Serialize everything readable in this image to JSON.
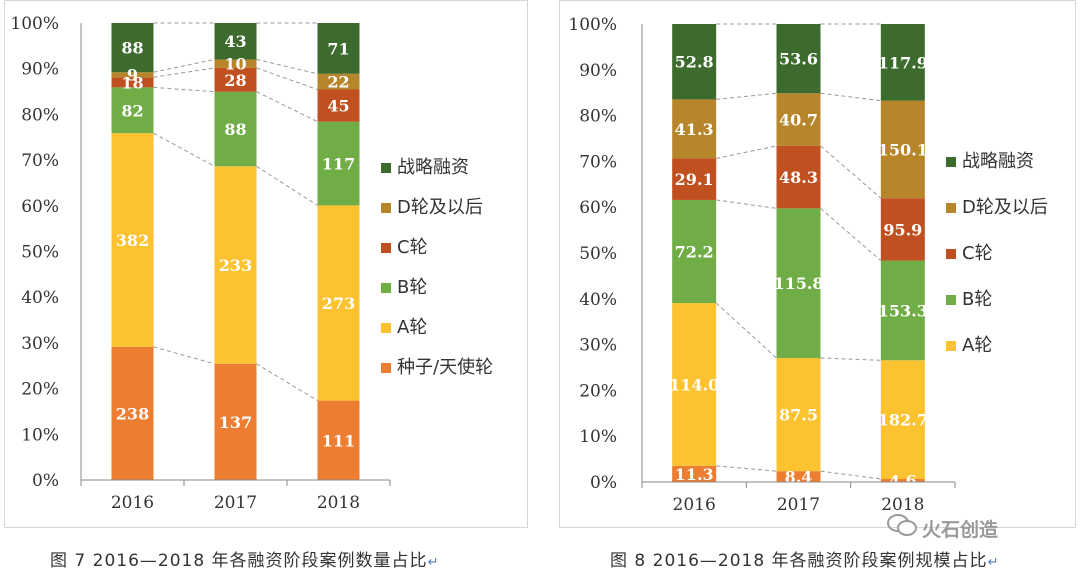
{
  "chart_data": [
    {
      "type": "bar",
      "stacked": "percent",
      "title": "图 7 2016—2018 年各融资阶段案例数量占比",
      "categories": [
        "2016",
        "2017",
        "2018"
      ],
      "ylim": [
        0,
        100
      ],
      "yticks": [
        "0%",
        "10%",
        "20%",
        "30%",
        "40%",
        "50%",
        "60%",
        "70%",
        "80%",
        "90%",
        "100%"
      ],
      "series": [
        {
          "name": "种子/天使轮",
          "color": "#ed7d31",
          "values": [
            238,
            137,
            111
          ],
          "labels": [
            "238",
            "137",
            "111"
          ]
        },
        {
          "name": "A轮",
          "color": "#fcc230",
          "values": [
            382,
            233,
            273
          ],
          "labels": [
            "382",
            "233",
            "273"
          ]
        },
        {
          "name": "B轮",
          "color": "#70ad47",
          "values": [
            82,
            88,
            117
          ],
          "labels": [
            "82",
            "88",
            "117"
          ]
        },
        {
          "name": "C轮",
          "color": "#c0501f",
          "values": [
            18,
            28,
            45
          ],
          "labels": [
            "18",
            "28",
            "45"
          ]
        },
        {
          "name": "D轮及以后",
          "color": "#b8862a",
          "values": [
            9,
            10,
            22
          ],
          "labels": [
            "9",
            "10",
            "22"
          ]
        },
        {
          "name": "战略融资",
          "color": "#3d6b2e",
          "values": [
            88,
            43,
            71
          ],
          "labels": [
            "88",
            "43",
            "71"
          ]
        }
      ],
      "legend": [
        "战略融资",
        "D轮及以后",
        "C轮",
        "B轮",
        "A轮",
        "种子/天使轮"
      ]
    },
    {
      "type": "bar",
      "stacked": "percent",
      "title": "图 8 2016—2018 年各融资阶段案例规模占比",
      "categories": [
        "2016",
        "2017",
        "2018"
      ],
      "ylim": [
        0,
        100
      ],
      "yticks": [
        "0%",
        "10%",
        "20%",
        "30%",
        "40%",
        "50%",
        "60%",
        "70%",
        "80%",
        "90%",
        "100%"
      ],
      "series": [
        {
          "name": "种子/天使轮",
          "color": "#ed7d31",
          "values": [
            11.3,
            8.4,
            4.6
          ],
          "labels": [
            "11.3",
            "8.4",
            "4.6"
          ]
        },
        {
          "name": "A轮",
          "color": "#fcc230",
          "values": [
            114.0,
            87.5,
            182.7
          ],
          "labels": [
            "114.0",
            "87.5",
            "182.7"
          ]
        },
        {
          "name": "B轮",
          "color": "#70ad47",
          "values": [
            72.2,
            115.8,
            153.3
          ],
          "labels": [
            "72.2",
            "115.8",
            "153.3"
          ]
        },
        {
          "name": "C轮",
          "color": "#c0501f",
          "values": [
            29.1,
            48.3,
            95.9
          ],
          "labels": [
            "29.1",
            "48.3",
            "95.9"
          ]
        },
        {
          "name": "D轮及以后",
          "color": "#b8862a",
          "values": [
            41.3,
            40.7,
            150.1
          ],
          "labels": [
            "41.3",
            "40.7",
            "150.1"
          ]
        },
        {
          "name": "战略融资",
          "color": "#3d6b2e",
          "values": [
            52.8,
            53.6,
            117.9
          ],
          "labels": [
            "52.8",
            "53.6",
            "117.9"
          ]
        }
      ],
      "legend": [
        "战略融资",
        "D轮及以后",
        "C轮",
        "B轮",
        "A轮"
      ]
    }
  ],
  "captions": {
    "left": "图 7   2016—2018 年各融资阶段案例数量占比",
    "right": "图 8   2016—2018 年各融资阶段案例规模占比"
  },
  "return_mark": "↵",
  "watermark": "火石创造"
}
